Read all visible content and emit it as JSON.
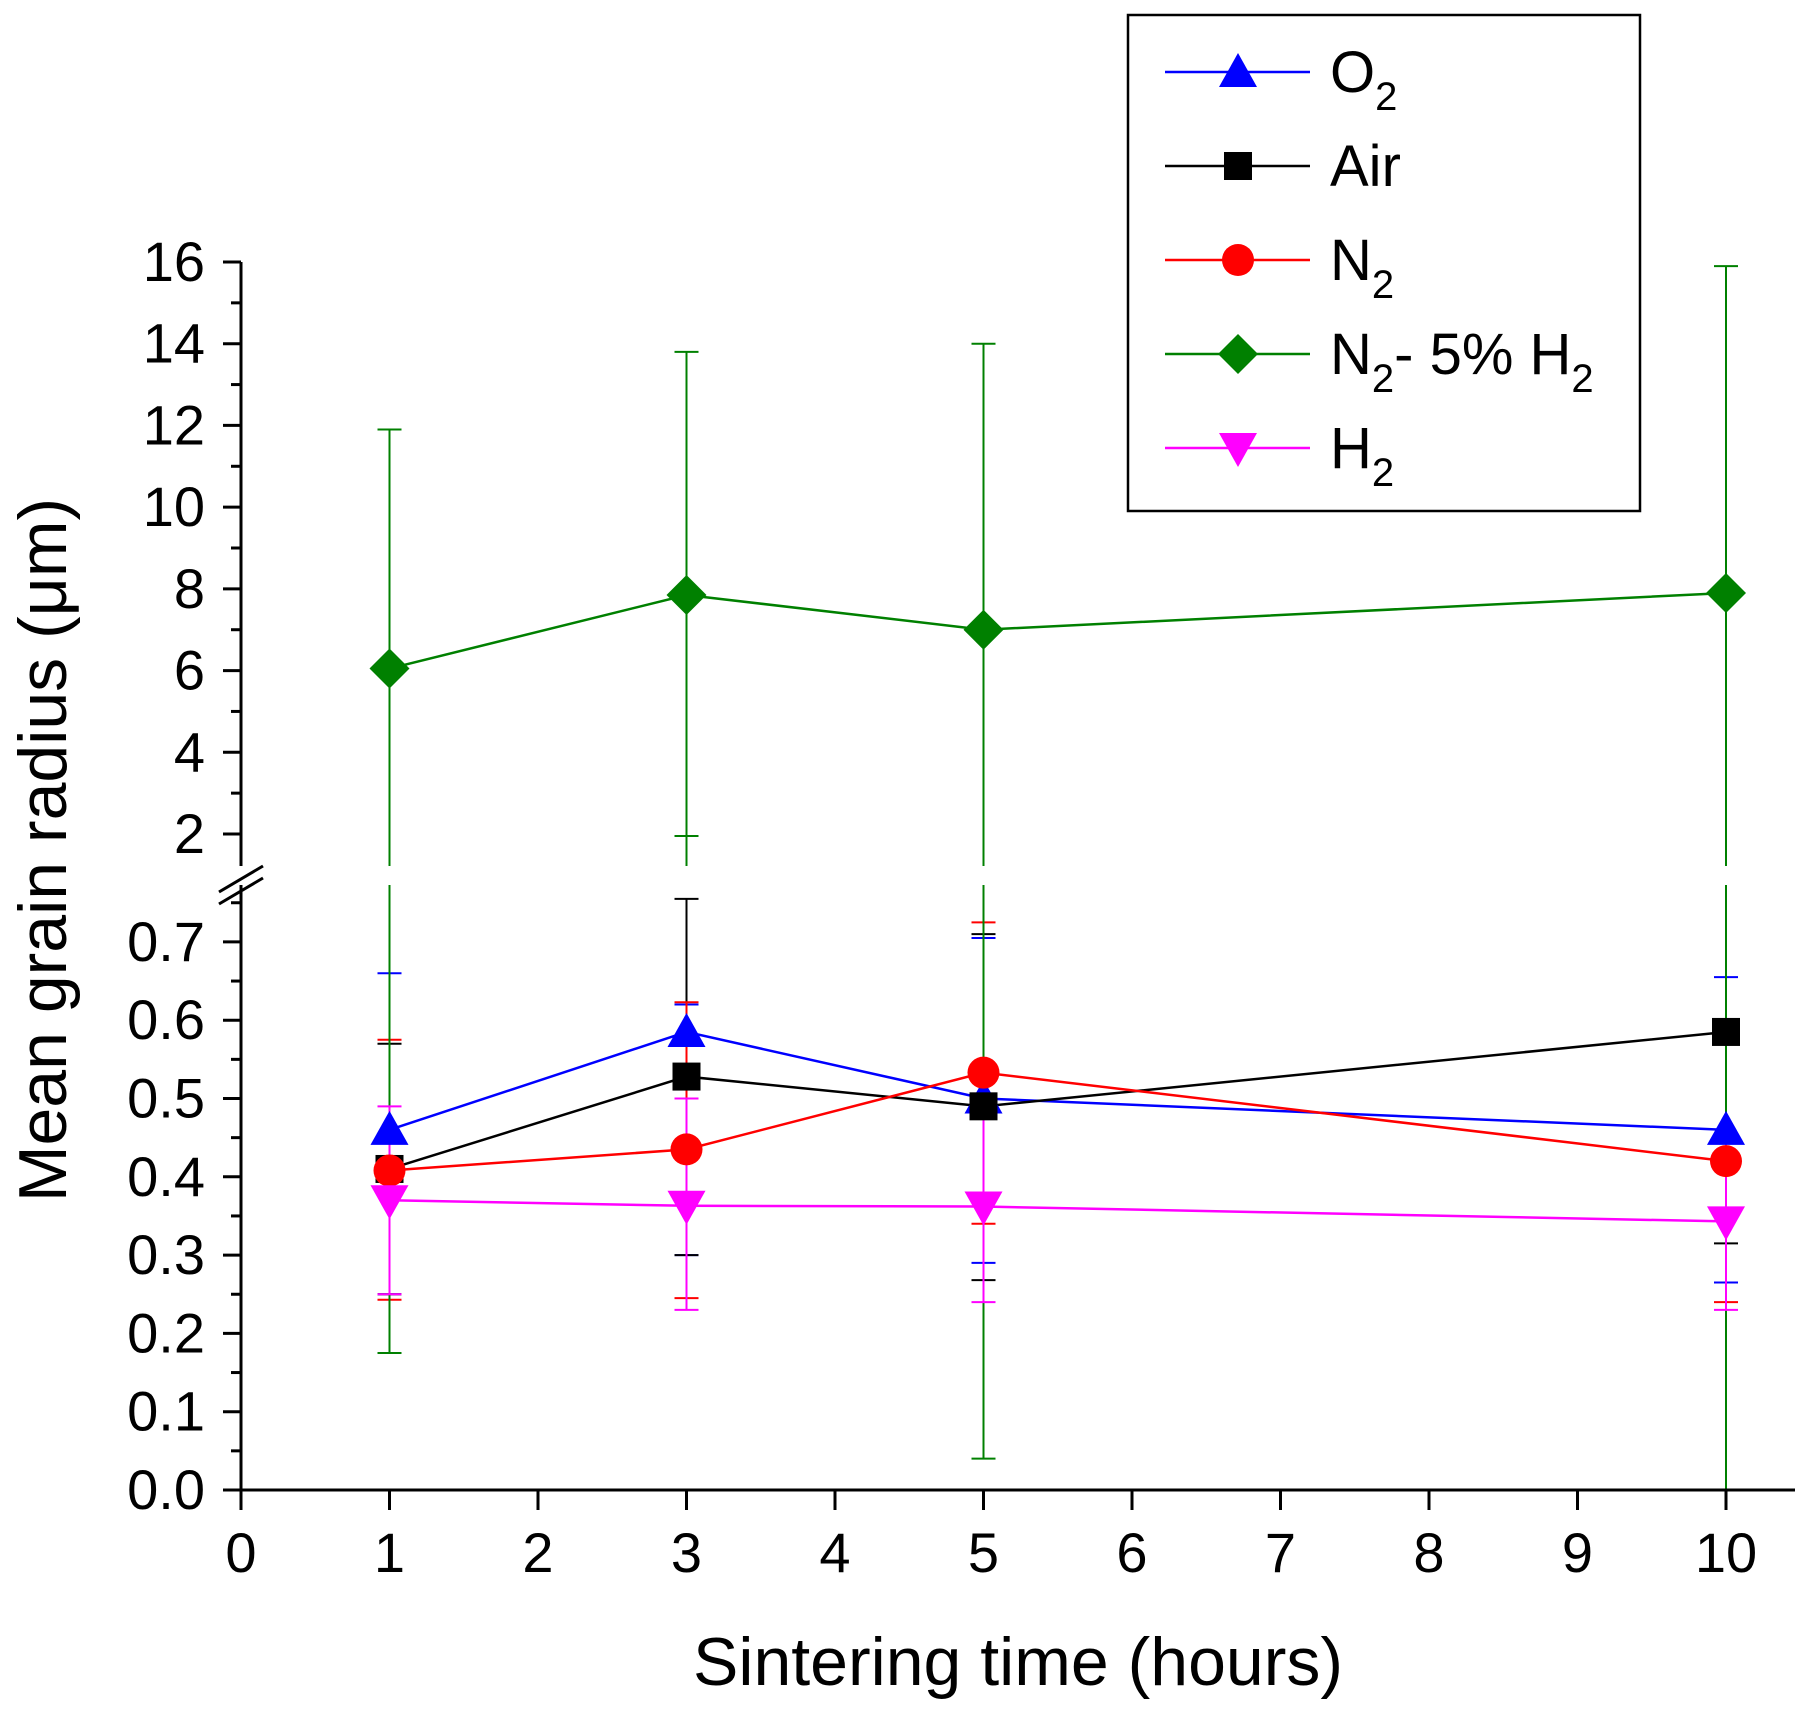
{
  "chart_data": {
    "type": "line",
    "title": "",
    "xlabel": "Sintering time (hours)",
    "ylabel": "Mean grain radius (μm)",
    "xlim": [
      0,
      10.3
    ],
    "x_ticks": [
      "0",
      "1",
      "2",
      "3",
      "4",
      "5",
      "6",
      "7",
      "8",
      "9",
      "10"
    ],
    "x_tick_values": [
      0,
      1,
      2,
      3,
      4,
      5,
      6,
      7,
      8,
      9,
      10
    ],
    "y_break": true,
    "y_lower_range": [
      0,
      0.75
    ],
    "y_upper_range": [
      1.3,
      16
    ],
    "y_ticks_lower": [
      "0.0",
      "0.1",
      "0.2",
      "0.3",
      "0.4",
      "0.5",
      "0.6",
      "0.7"
    ],
    "y_tick_values_lower": [
      0,
      0.1,
      0.2,
      0.3,
      0.4,
      0.5,
      0.6,
      0.7
    ],
    "y_ticks_upper": [
      "2",
      "4",
      "6",
      "8",
      "10",
      "12",
      "14",
      "16"
    ],
    "y_tick_values_upper": [
      2,
      4,
      6,
      8,
      10,
      12,
      14,
      16
    ],
    "legend_position": "top-right",
    "series": [
      {
        "name": "O2",
        "legend_main": "O",
        "legend_sub": "2",
        "legend_tail": "",
        "legend_tail_sub": "",
        "color": "#0000ff",
        "marker": "triangle-up",
        "x": [
          1,
          3,
          5,
          10
        ],
        "values": [
          0.46,
          0.585,
          0.5,
          0.46
        ],
        "err_low": [
          0.25,
          0.3,
          0.29,
          0.265
        ],
        "err_high": [
          0.66,
          0.62,
          0.705,
          0.655
        ]
      },
      {
        "name": "Air",
        "legend_main": "Air",
        "legend_sub": "",
        "legend_tail": "",
        "legend_tail_sub": "",
        "color": "#000000",
        "marker": "square",
        "x": [
          1,
          3,
          5,
          10
        ],
        "values": [
          0.41,
          0.528,
          0.49,
          0.585
        ],
        "err_low": [
          0.25,
          0.3,
          0.268,
          0.315
        ],
        "err_high": [
          0.57,
          0.755,
          0.71,
          0.6
        ]
      },
      {
        "name": "N2",
        "legend_main": "N",
        "legend_sub": "2",
        "legend_tail": "",
        "legend_tail_sub": "",
        "color": "#ff0000",
        "marker": "circle",
        "x": [
          1,
          3,
          5,
          10
        ],
        "values": [
          0.408,
          0.435,
          0.533,
          0.42
        ],
        "err_low": [
          0.243,
          0.245,
          0.34,
          0.24
        ],
        "err_high": [
          0.575,
          0.623,
          0.725,
          0.6
        ]
      },
      {
        "name": "N2- 5% H2",
        "legend_main": "N",
        "legend_sub": "2",
        "legend_tail": "- 5% H",
        "legend_tail_sub": "2",
        "color": "#008000",
        "marker": "diamond",
        "x": [
          1,
          3,
          5,
          10
        ],
        "values": [
          6.05,
          7.85,
          7.0,
          7.9
        ],
        "err_low": [
          0.175,
          1.95,
          0.04,
          0.0
        ],
        "err_high": [
          11.9,
          13.8,
          14.0,
          15.9
        ]
      },
      {
        "name": "H2",
        "legend_main": "H",
        "legend_sub": "2",
        "legend_tail": "",
        "legend_tail_sub": "",
        "color": "#ff00ff",
        "marker": "triangle-down",
        "x": [
          1,
          3,
          5,
          10
        ],
        "values": [
          0.37,
          0.363,
          0.362,
          0.343
        ],
        "err_low": [
          0.25,
          0.23,
          0.24,
          0.23
        ],
        "err_high": [
          0.49,
          0.5,
          0.5,
          0.45
        ]
      }
    ]
  }
}
